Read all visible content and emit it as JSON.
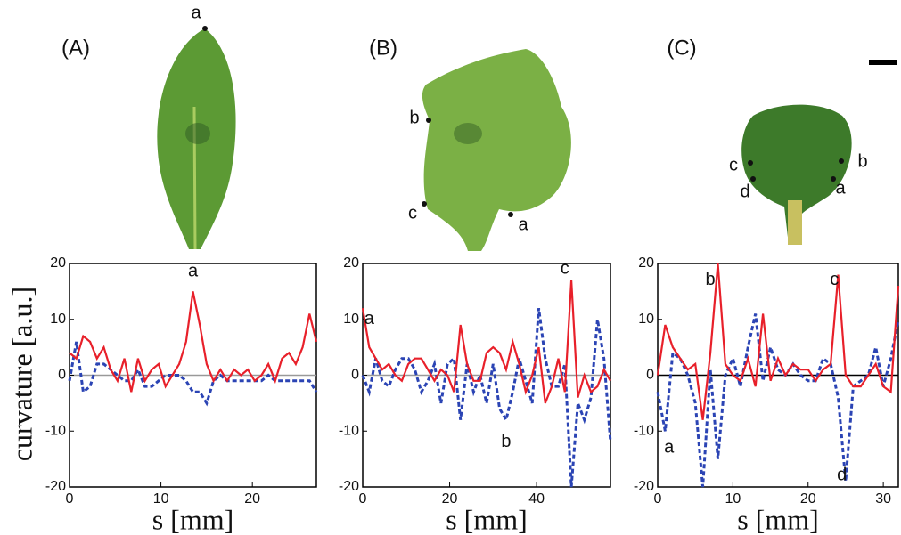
{
  "panels": [
    {
      "label": "(A)",
      "points": [
        "a"
      ]
    },
    {
      "label": "(B)",
      "points": [
        "b",
        "c",
        "a"
      ]
    },
    {
      "label": "(C)",
      "points": [
        "c",
        "d",
        "b",
        "a"
      ]
    }
  ],
  "chart_data": [
    {
      "type": "line",
      "ylabel": "curvature [a.u.]",
      "xlabel": "s [mm]",
      "xlim": [
        0,
        27
      ],
      "ylim": [
        -20,
        20
      ],
      "xticks": [
        0,
        10,
        20
      ],
      "yticks": [
        -20,
        -10,
        0,
        10,
        20
      ],
      "zero_line_color": "#999999",
      "x": [
        0,
        0.75,
        1.5,
        2.25,
        3,
        3.75,
        4.5,
        5.25,
        6,
        6.75,
        7.5,
        8.25,
        9,
        9.75,
        10.5,
        11.25,
        12,
        12.75,
        13.5,
        14.25,
        15,
        15.75,
        16.5,
        17.25,
        18,
        18.75,
        19.5,
        20.25,
        21,
        21.75,
        22.5,
        23.25,
        24,
        24.75,
        25.5,
        26.25,
        27
      ],
      "series": [
        {
          "color": "#e8202a",
          "style": "solid",
          "values": [
            4,
            3,
            7,
            6,
            3,
            5,
            1,
            -1,
            3,
            -3,
            3,
            -1,
            1,
            2,
            -2,
            0,
            2,
            6,
            15,
            9,
            2,
            -1,
            1,
            -1,
            1,
            0,
            1,
            -1,
            0,
            2,
            -1,
            3,
            4,
            2,
            5,
            11,
            6
          ]
        },
        {
          "color": "#2b44b4",
          "style": "dashed",
          "values": [
            -1,
            6,
            -3,
            -2,
            2,
            2,
            1,
            0,
            -1,
            -1,
            1,
            -2,
            -2,
            -1,
            0,
            0,
            0,
            -1,
            -3,
            -3,
            -5,
            -1,
            0,
            -1,
            -1,
            -1,
            -1,
            -1,
            -1,
            0,
            -1,
            -1,
            -1,
            -1,
            -1,
            -1,
            -3
          ]
        }
      ],
      "annotations": [
        {
          "text": "a",
          "x": 13.5,
          "y": 18.5
        }
      ]
    },
    {
      "type": "line",
      "xlabel": "s [mm]",
      "xlim": [
        0,
        57
      ],
      "ylim": [
        -20,
        20
      ],
      "xticks": [
        0,
        20,
        40
      ],
      "yticks": [
        -20,
        -10,
        0,
        10,
        20
      ],
      "zero_line_color": "#999999",
      "x": [
        0,
        1.5,
        3,
        4.5,
        6,
        7.5,
        9,
        10.5,
        12,
        13.5,
        15,
        16.5,
        18,
        19.5,
        21,
        22.5,
        24,
        25.5,
        27,
        28.5,
        30,
        31.5,
        33,
        34.5,
        36,
        37.5,
        39,
        40.5,
        42,
        43.5,
        45,
        46.5,
        48,
        49.5,
        51,
        52.5,
        54,
        55.5,
        57
      ],
      "series": [
        {
          "color": "#e8202a",
          "style": "solid",
          "values": [
            12,
            5,
            3,
            1,
            2,
            0,
            -1,
            2,
            3,
            3,
            1,
            -1,
            1,
            0,
            -3,
            9,
            2,
            -1,
            -1,
            4,
            5,
            4,
            1,
            6,
            2,
            -3,
            0,
            5,
            -5,
            -2,
            3,
            -3,
            17,
            -4,
            0,
            -3,
            -2,
            1,
            -1
          ]
        },
        {
          "color": "#2b44b4",
          "style": "dashed",
          "values": [
            0,
            -3,
            3,
            -1,
            -2,
            1,
            3,
            3,
            1,
            -3,
            -1,
            2,
            -5,
            2,
            3,
            -8,
            2,
            -3,
            0,
            -5,
            2,
            -6,
            -8,
            -3,
            3,
            -1,
            -5,
            12,
            3,
            -2,
            -2,
            2,
            -20,
            -5,
            -8,
            -4,
            10,
            3,
            -12
          ]
        }
      ],
      "annotations": [
        {
          "text": "a",
          "x": 1.5,
          "y": 10
        },
        {
          "text": "c",
          "x": 46.5,
          "y": 19
        },
        {
          "text": "b",
          "x": 33,
          "y": -12
        }
      ]
    },
    {
      "type": "line",
      "xlabel": "s [mm]",
      "xlim": [
        0,
        32
      ],
      "ylim": [
        -20,
        20
      ],
      "xticks": [
        0,
        10,
        20,
        30
      ],
      "yticks": [
        -20,
        -10,
        0,
        10,
        20
      ],
      "zero_line_color": "#000000",
      "x": [
        0,
        1,
        2,
        3,
        4,
        5,
        6,
        7,
        8,
        9,
        10,
        11,
        12,
        13,
        14,
        15,
        16,
        17,
        18,
        19,
        20,
        21,
        22,
        23,
        24,
        25,
        26,
        27,
        28,
        29,
        30,
        31,
        32
      ],
      "series": [
        {
          "color": "#e8202a",
          "style": "solid",
          "values": [
            0,
            9,
            5,
            3,
            1,
            2,
            -8,
            4,
            20,
            2,
            0,
            -1,
            3,
            -2,
            11,
            -1,
            3,
            0,
            2,
            1,
            1,
            -1,
            1,
            2,
            18,
            0,
            -2,
            -2,
            0,
            2,
            -2,
            -3,
            16
          ]
        },
        {
          "color": "#2b44b4",
          "style": "dashed",
          "values": [
            -3,
            -10,
            4,
            3,
            0,
            -5,
            -20,
            1,
            -15,
            0,
            3,
            -2,
            5,
            11,
            -1,
            5,
            1,
            0,
            2,
            0,
            -1,
            -1,
            3,
            2,
            -4,
            -19,
            -2,
            -1,
            0,
            5,
            -2,
            3,
            10
          ]
        }
      ],
      "annotations": [
        {
          "text": "b",
          "x": 7,
          "y": 17
        },
        {
          "text": "c",
          "x": 23.5,
          "y": 17
        },
        {
          "text": "a",
          "x": 1.5,
          "y": -13
        },
        {
          "text": "d",
          "x": 24.5,
          "y": -18
        }
      ]
    }
  ]
}
